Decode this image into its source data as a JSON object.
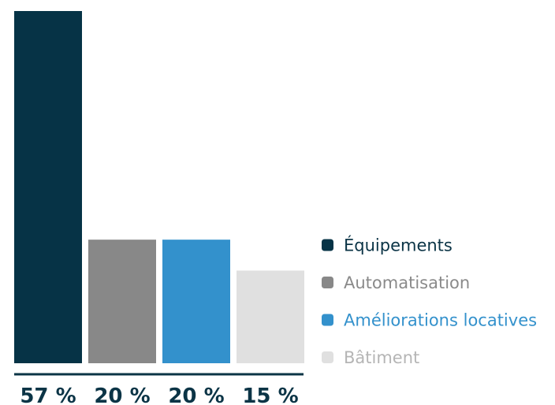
{
  "chart_data": {
    "type": "bar",
    "categories": [
      "Équipements",
      "Automatisation",
      "Améliorations locatives",
      "Bâtiment"
    ],
    "values": [
      57,
      20,
      20,
      15
    ],
    "value_labels": [
      "57 %",
      "20 %",
      "20 %",
      "15 %"
    ],
    "ylim": [
      0,
      57
    ],
    "grid": false,
    "legend_position": "right",
    "colors": [
      "#063346",
      "#888888",
      "#3391cc",
      "#e0e0e0"
    ],
    "legend_text_colors": [
      "#0b3446",
      "#8a8a8a",
      "#3391cc",
      "#b5b5b5"
    ],
    "axis_color": "#0b3446"
  }
}
